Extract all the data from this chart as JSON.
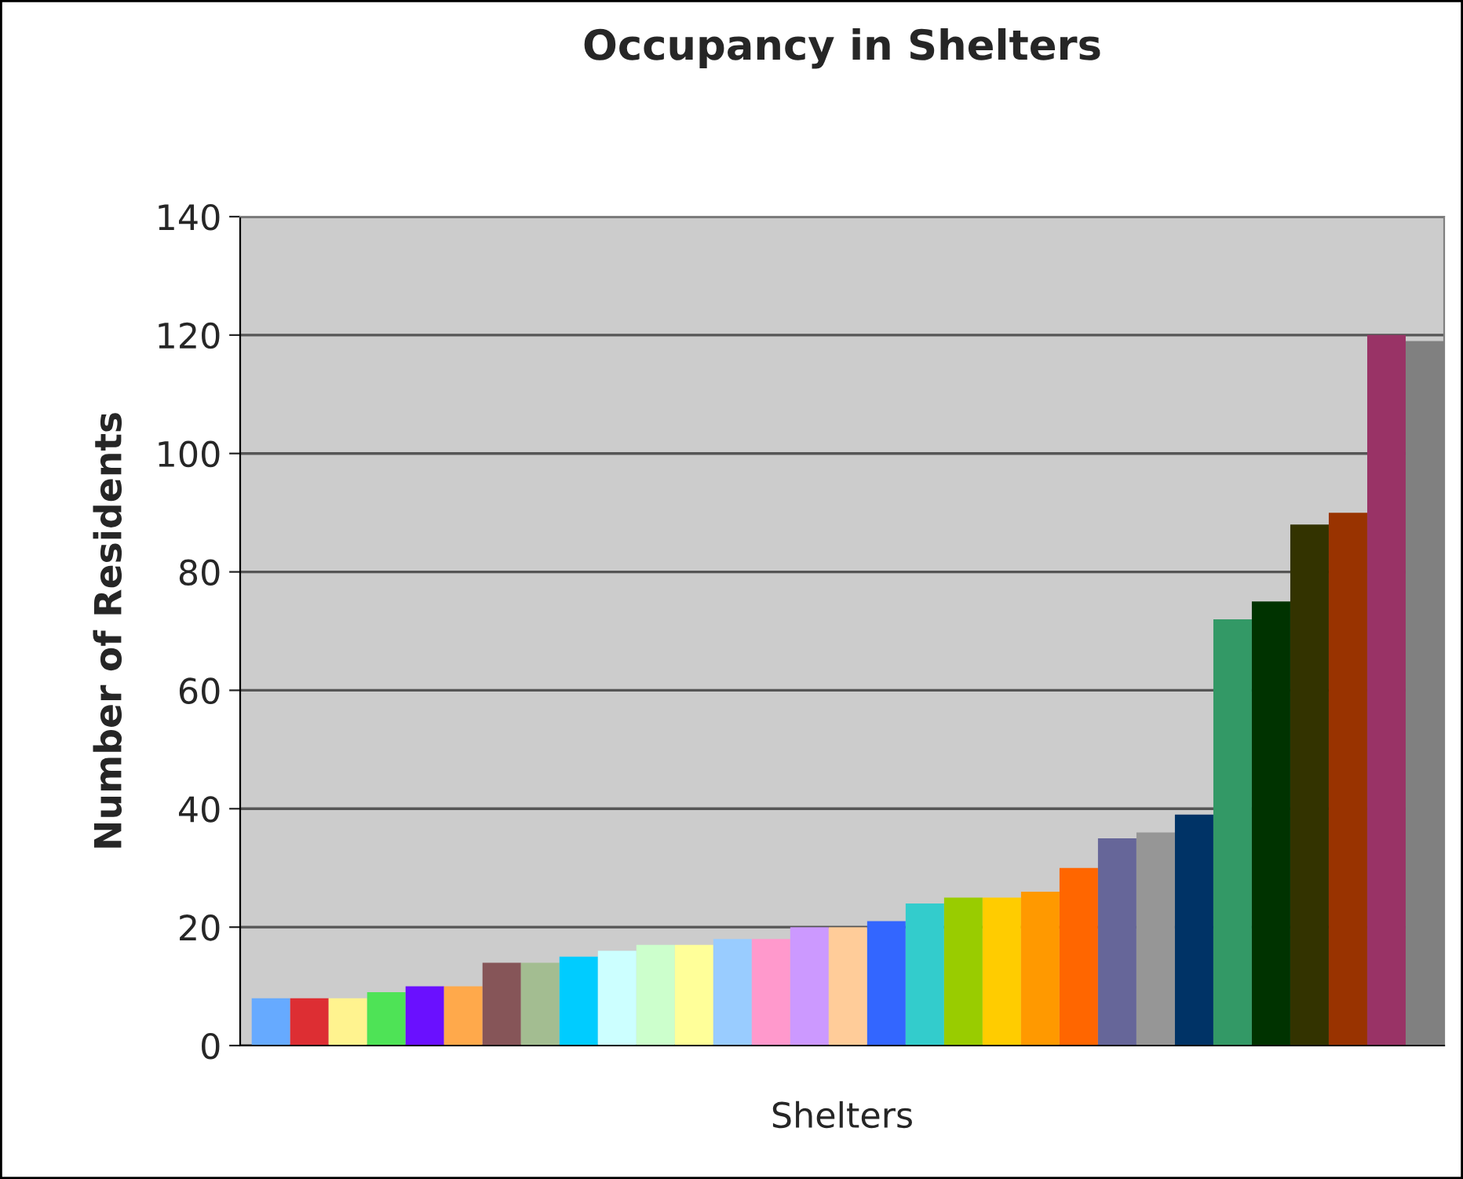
{
  "chart_data": {
    "type": "bar",
    "title": "Occupancy in Shelters",
    "xlabel": "Shelters",
    "ylabel": "Number of Residents",
    "categories": [
      null,
      null,
      null,
      null,
      null,
      null,
      null,
      null,
      null,
      null,
      null,
      null,
      null,
      null,
      null,
      null,
      null,
      null,
      null,
      null,
      null,
      null,
      null,
      null,
      null,
      null,
      null,
      null,
      null,
      null,
      null
    ],
    "values": [
      8,
      8,
      8,
      9,
      10,
      10,
      14,
      14,
      15,
      16,
      17,
      17,
      18,
      18,
      20,
      20,
      21,
      24,
      25,
      25,
      26,
      30,
      35,
      36,
      39,
      72,
      75,
      88,
      90,
      120,
      119
    ],
    "colors": [
      "#66aaff",
      "#dd2e33",
      "#fff38f",
      "#4ee356",
      "#6a10ff",
      "#ffa94b",
      "#865558",
      "#a3bd91",
      "#00ccff",
      "#ccffff",
      "#ccffcc",
      "#ffff99",
      "#99ccff",
      "#ff99cc",
      "#cc99ff",
      "#ffcc99",
      "#3366ff",
      "#33cccc",
      "#99cc00",
      "#ffcc00",
      "#ff9900",
      "#ff6600",
      "#666699",
      "#969696",
      "#003366",
      "#339966",
      "#003300",
      "#333300",
      "#993300",
      "#993366",
      "#808080"
    ],
    "ylim": [
      0,
      140
    ],
    "yticks": [
      0,
      20,
      40,
      60,
      80,
      100,
      120,
      140
    ],
    "grid": "y"
  }
}
